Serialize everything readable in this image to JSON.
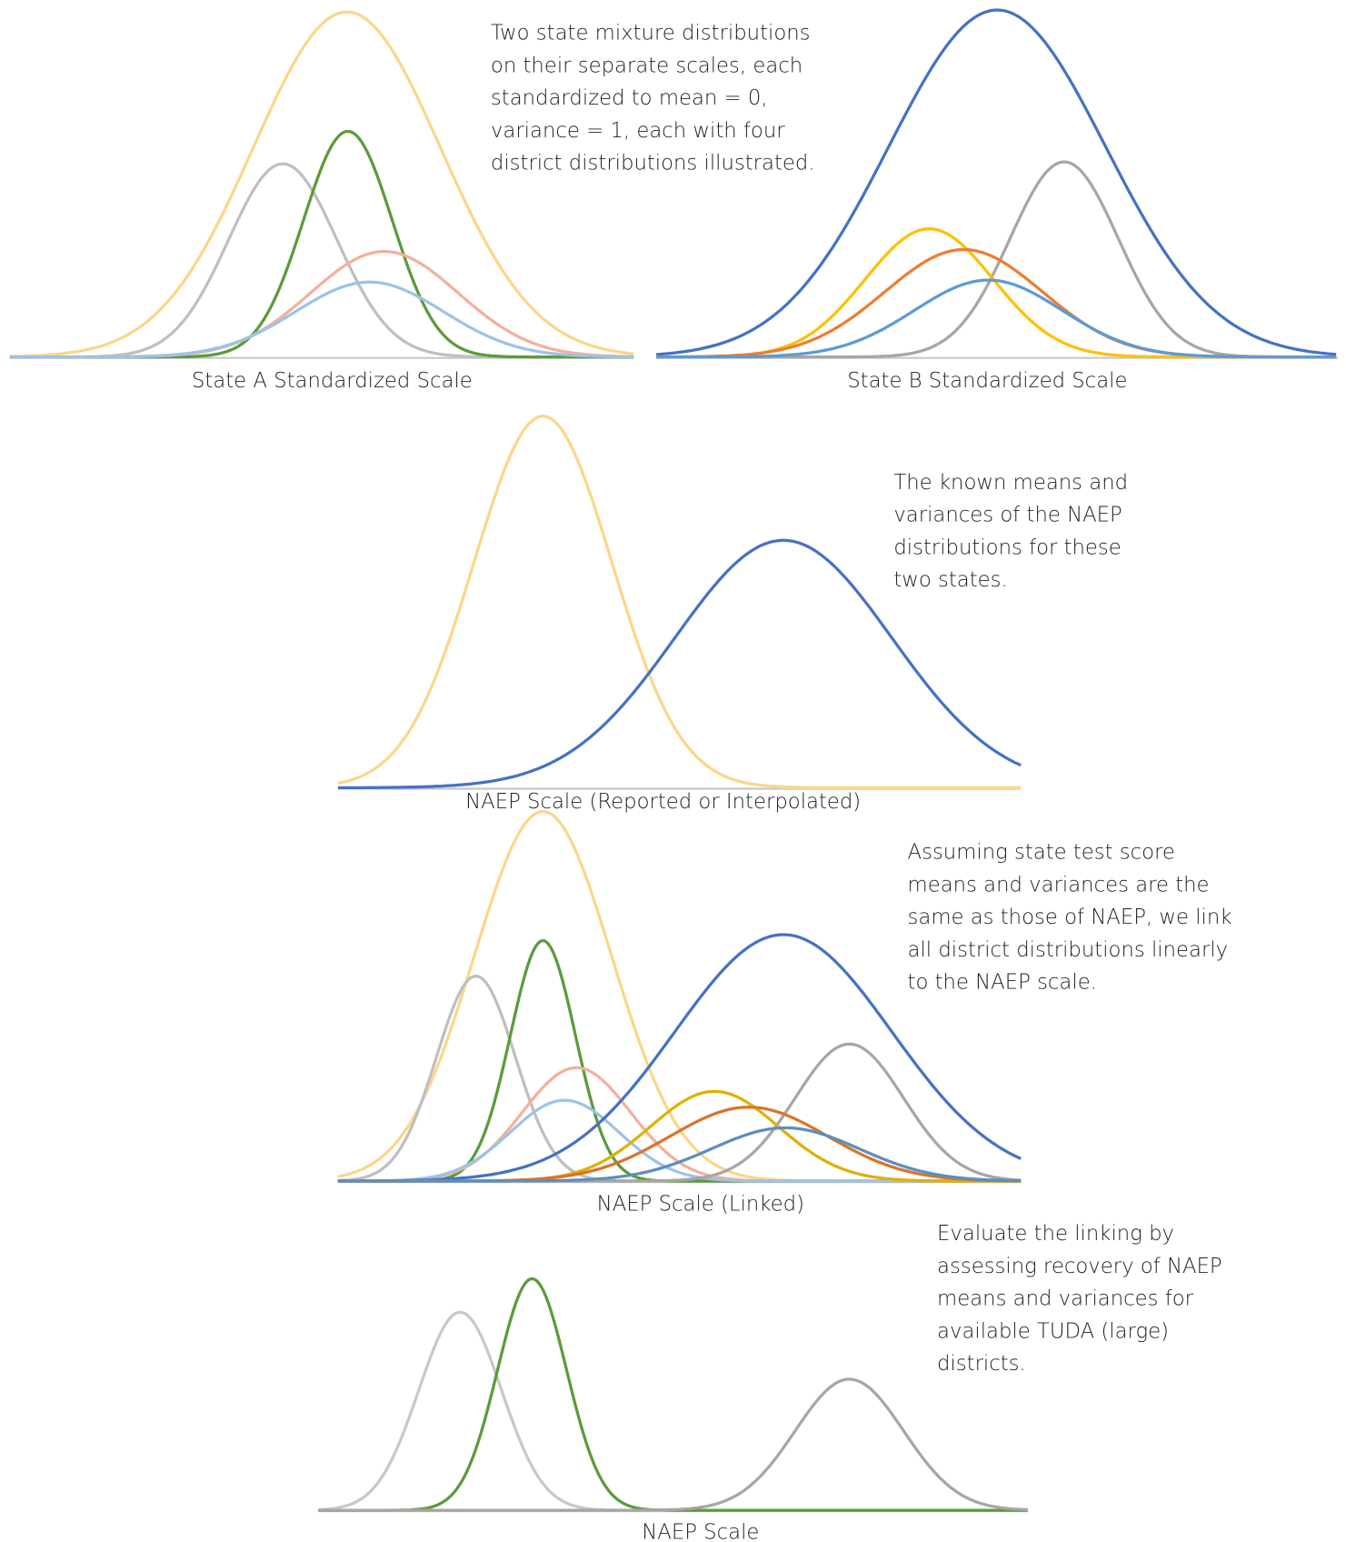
{
  "panels": [
    {
      "label": "State A Standardized Scale"
    },
    {
      "label": "State B Standardized Scale"
    },
    {
      "label": "NAEP Scale (Reported or Interpolated)"
    },
    {
      "label": "NAEP Scale (Linked)"
    },
    {
      "label": "NAEP Scale"
    }
  ],
  "annotations": [
    {
      "lines": [
        "Two state mixture distributions",
        "on their separate scales, each",
        "standardized to mean = 0,",
        "variance = 1, each with four",
        "district distributions illustrated."
      ]
    },
    {
      "lines": [
        "The known means and",
        "variances of the NAEP",
        "distributions for these",
        "two states."
      ]
    },
    {
      "lines": [
        "Assuming state test score",
        "means and variances are the",
        "same as those of NAEP, we link",
        "all district distributions linearly",
        "to the NAEP scale."
      ]
    },
    {
      "lines": [
        "Evaluate the linking by",
        "assessing recovery of NAEP",
        "means and variances for",
        "available TUDA (large)",
        "districts."
      ]
    }
  ]
}
